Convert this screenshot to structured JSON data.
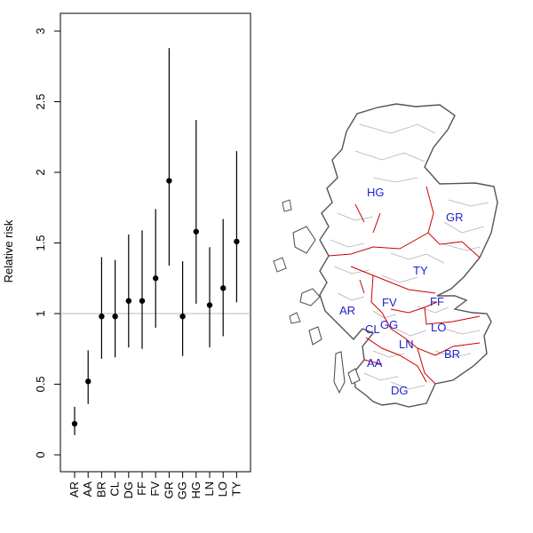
{
  "chart_data": {
    "type": "scatter",
    "subtype": "point-with-interval",
    "title": "",
    "xlabel": "",
    "ylabel": "Relative risk",
    "ylim": [
      0,
      3.1
    ],
    "yticks": [
      0,
      0.5,
      1,
      1.5,
      2,
      2.5,
      3
    ],
    "reference_line": 1,
    "grid": false,
    "categories": [
      "AR",
      "AA",
      "BR",
      "CL",
      "DG",
      "FF",
      "FV",
      "GR",
      "GG",
      "HG",
      "LN",
      "LO",
      "TY"
    ],
    "estimates": [
      0.22,
      0.52,
      0.98,
      0.98,
      1.09,
      1.09,
      1.25,
      1.94,
      0.98,
      1.58,
      1.06,
      1.18,
      1.51
    ],
    "lower": [
      0.14,
      0.36,
      0.68,
      0.69,
      0.76,
      0.75,
      0.9,
      1.34,
      0.7,
      1.07,
      0.76,
      0.84,
      1.08
    ],
    "upper": [
      0.34,
      0.74,
      1.4,
      1.38,
      1.56,
      1.59,
      1.74,
      2.88,
      1.37,
      2.37,
      1.47,
      1.67,
      2.15
    ]
  },
  "map": {
    "region_labels": [
      "HG",
      "GR",
      "TY",
      "FV",
      "FF",
      "AR",
      "GG",
      "CL",
      "LO",
      "LN",
      "BR",
      "AA",
      "DG"
    ],
    "colors": {
      "outline": "#555555",
      "boundary_major": "#cc0000",
      "boundary_minor": "#b0b0b0",
      "label": "#1f1fcf"
    }
  }
}
